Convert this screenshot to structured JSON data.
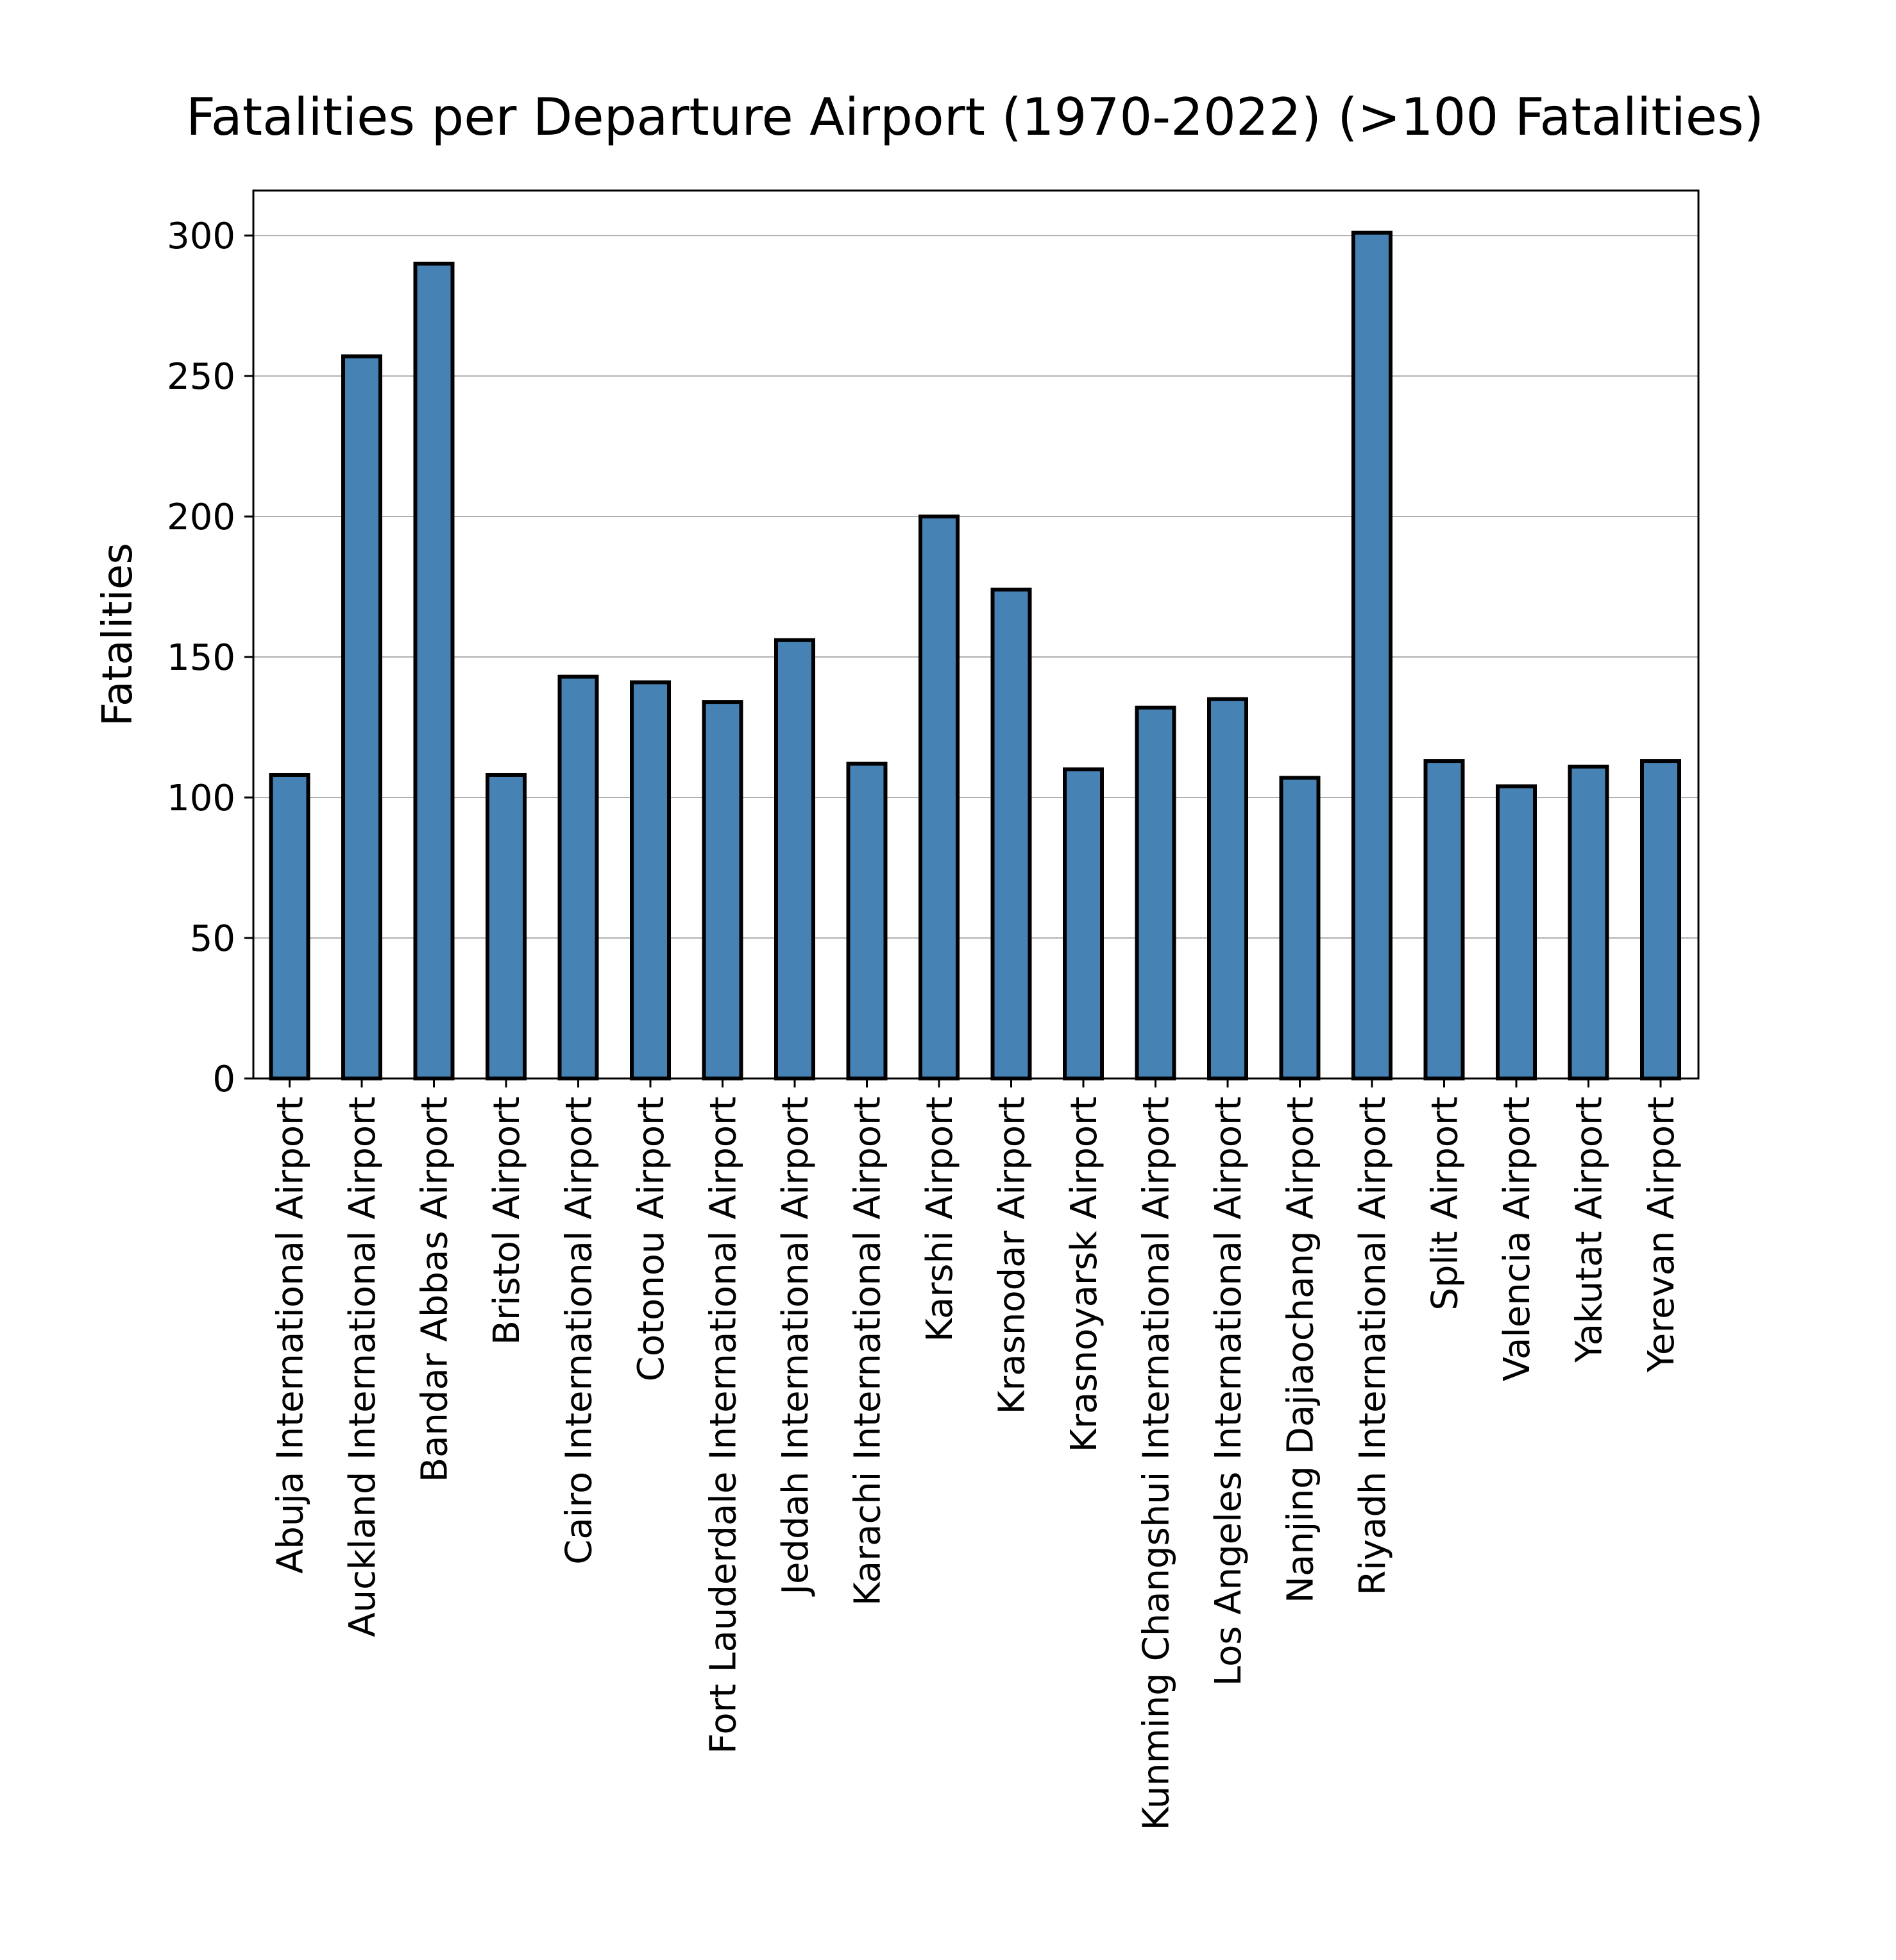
{
  "chart_data": {
    "type": "bar",
    "title": "Fatalities per Departure Airport (1970-2022) (>100 Fatalities)",
    "xlabel": "",
    "ylabel": "Fatalities",
    "ylim": [
      0,
      316
    ],
    "yticks": [
      0,
      50,
      100,
      150,
      200,
      250,
      300
    ],
    "grid": "horizontal",
    "bar_color": "#4682b4",
    "edge_color": "#000000",
    "categories": [
      "Abuja International Airport",
      "Auckland International Airport",
      "Bandar Abbas Airport",
      "Bristol Airport",
      "Cairo International Airport",
      "Cotonou Airport",
      "Fort Lauderdale International Airport",
      "Jeddah International Airport",
      "Karachi International Airport",
      "Karshi Airport",
      "Krasnodar Airport",
      "Krasnoyarsk Airport",
      "Kunming Changshui International Airport",
      "Los Angeles International Airport",
      "Nanjing Dajiaochang Airport",
      "Riyadh International Airport",
      "Split Airport",
      "Valencia Airport",
      "Yakutat Airport",
      "Yerevan Airport"
    ],
    "values": [
      108,
      257,
      290,
      108,
      143,
      141,
      134,
      156,
      112,
      200,
      174,
      110,
      132,
      135,
      107,
      301,
      113,
      104,
      111,
      113
    ]
  }
}
